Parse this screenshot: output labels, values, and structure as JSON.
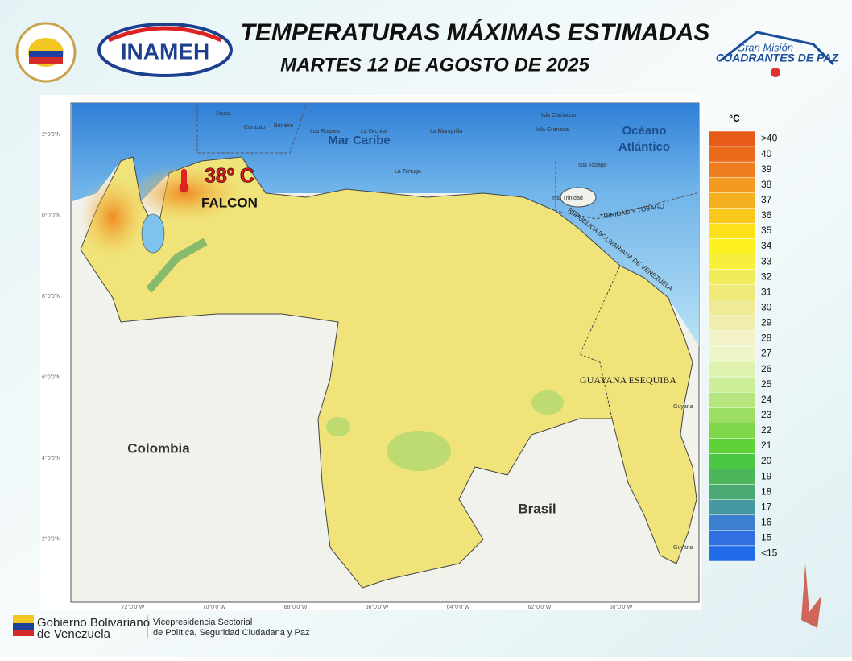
{
  "header": {
    "title": "TEMPERATURAS MÁXIMAS ESTIMADAS",
    "subtitle": "MARTES 12 DE AGOSTO DE 2025",
    "inameh": "INAMEH",
    "mission_line1": "Gran Misión",
    "mission_line2": "CUADRANTES DE PAZ"
  },
  "map": {
    "labels": {
      "sea": "Mar Caribe",
      "ocean_line1": "Océano",
      "ocean_line2": "Atlántico",
      "colombia": "Colombia",
      "brasil": "Brasil",
      "esequiba": "GUAYANA ESEQUIBA",
      "tt": "TRINIDAD Y TOBAGO",
      "ven": "REPÚBLICA BOLIVARIANA DE VENEZUELA",
      "aruba": "Aruba",
      "curazao": "Curazao",
      "bonaire": "Bonaire",
      "roques": "Los Roques",
      "orchila": "La Orchila",
      "blanquilla": "La Blanquilla",
      "tortuga": "La Tortuga",
      "carriacou": "Isla Carriacou",
      "granada": "Isla Granada",
      "tobago": "Isla Tobago",
      "trinidad": "Isla Trinidad",
      "guyana1": "Guyana",
      "guyana2": "Guyana"
    },
    "highlight": {
      "value": "38º C",
      "state": "FALCON"
    },
    "lat_ticks": [
      "2°0'0\"N",
      "0°0'0\"N",
      "8°0'0\"N",
      "6°0'0\"N",
      "4°0'0\"N",
      "2°0'0\"N"
    ],
    "lon_ticks": [
      "72°0'0\"W",
      "70°0'0\"W",
      "68°0'0\"W",
      "66°0'0\"W",
      "64°0'0\"W",
      "62°0'0\"W",
      "60°0'0\"W"
    ]
  },
  "legend": {
    "unit": "°C",
    "items": [
      {
        "label": ">40",
        "color": "#e65a1a"
      },
      {
        "label": "40",
        "color": "#ea6a1c"
      },
      {
        "label": "39",
        "color": "#ee7d1f"
      },
      {
        "label": "38",
        "color": "#f29a22"
      },
      {
        "label": "37",
        "color": "#f5b020"
      },
      {
        "label": "36",
        "color": "#f8c81c"
      },
      {
        "label": "35",
        "color": "#fbe01a"
      },
      {
        "label": "34",
        "color": "#fdf020"
      },
      {
        "label": "33",
        "color": "#f6ef3c"
      },
      {
        "label": "32",
        "color": "#f2ec5a"
      },
      {
        "label": "31",
        "color": "#efe97a"
      },
      {
        "label": "30",
        "color": "#eeea96"
      },
      {
        "label": "29",
        "color": "#f0eeaf"
      },
      {
        "label": "28",
        "color": "#f2f2c6"
      },
      {
        "label": "27",
        "color": "#eef5c8"
      },
      {
        "label": "26",
        "color": "#dff2b0"
      },
      {
        "label": "25",
        "color": "#cdee98"
      },
      {
        "label": "24",
        "color": "#b5e67e"
      },
      {
        "label": "23",
        "color": "#9cde63"
      },
      {
        "label": "22",
        "color": "#7ed64a"
      },
      {
        "label": "21",
        "color": "#5fd23a"
      },
      {
        "label": "20",
        "color": "#4cc745"
      },
      {
        "label": "19",
        "color": "#4db55a"
      },
      {
        "label": "18",
        "color": "#4aa872"
      },
      {
        "label": "17",
        "color": "#4597a0"
      },
      {
        "label": "16",
        "color": "#3b7fcf"
      },
      {
        "label": "15",
        "color": "#2f6fe0"
      },
      {
        "label": "<15",
        "color": "#1f6be8"
      }
    ]
  },
  "footer": {
    "gov_line1": "Gobierno Bolivariano",
    "gov_line2": "de Venezuela",
    "vp_line1": "Vicepresidencia Sectorial",
    "vp_line2": "de Política, Seguridad Ciudadana y Paz"
  }
}
